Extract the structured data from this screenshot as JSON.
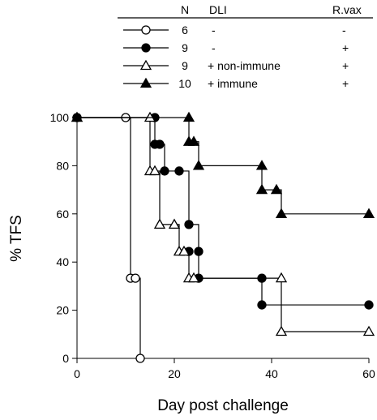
{
  "chart_data": {
    "type": "line",
    "step": true,
    "title": "",
    "xlabel": "Day post challenge",
    "ylabel": "% TFS",
    "xlim": [
      0,
      60
    ],
    "ylim": [
      0,
      100
    ],
    "xticks": [
      0,
      20,
      40,
      60
    ],
    "yticks": [
      0,
      20,
      40,
      60,
      80,
      100
    ],
    "grid": false,
    "legend": {
      "placement": "top-right",
      "headers": [
        "N",
        "DLI",
        "R.vax"
      ],
      "rows": [
        {
          "n": "6",
          "dli": "-",
          "rvax": "-"
        },
        {
          "n": "9",
          "dli": "-",
          "rvax": "+"
        },
        {
          "n": "9",
          "dli": "+ non-immune",
          "rvax": "+"
        },
        {
          "n": "10",
          "dli": "+ immune",
          "rvax": "+"
        }
      ]
    },
    "series": [
      {
        "marker": "open-circle",
        "steps": [
          [
            0,
            100
          ],
          [
            11,
            33.3
          ],
          [
            13,
            0
          ]
        ],
        "points": [
          [
            0,
            100
          ],
          [
            10,
            100
          ],
          [
            11,
            33.3
          ],
          [
            12,
            33.3
          ],
          [
            13,
            0
          ]
        ]
      },
      {
        "marker": "filled-circle",
        "steps": [
          [
            0,
            100
          ],
          [
            16,
            88.9
          ],
          [
            18,
            77.8
          ],
          [
            23,
            55.6
          ],
          [
            25,
            33.3
          ],
          [
            38,
            22.2
          ],
          [
            60,
            22.2
          ]
        ],
        "points": [
          [
            0,
            100
          ],
          [
            16,
            100
          ],
          [
            16,
            88.9
          ],
          [
            17,
            88.9
          ],
          [
            18,
            77.8
          ],
          [
            21,
            77.8
          ],
          [
            23,
            55.6
          ],
          [
            23,
            44.4
          ],
          [
            25,
            44.4
          ],
          [
            25,
            33.3
          ],
          [
            38,
            33.3
          ],
          [
            38,
            22.2
          ],
          [
            60,
            22.2
          ]
        ]
      },
      {
        "marker": "open-triangle",
        "steps": [
          [
            0,
            100
          ],
          [
            15,
            77.8
          ],
          [
            17,
            55.6
          ],
          [
            21,
            44.4
          ],
          [
            23,
            33.3
          ],
          [
            42,
            11.1
          ],
          [
            60,
            11.1
          ]
        ],
        "points": [
          [
            0,
            100
          ],
          [
            15,
            100
          ],
          [
            15,
            77.8
          ],
          [
            16,
            77.8
          ],
          [
            17,
            55.6
          ],
          [
            20,
            55.6
          ],
          [
            21,
            44.4
          ],
          [
            22,
            44.4
          ],
          [
            23,
            33.3
          ],
          [
            24,
            33.3
          ],
          [
            42,
            33.3
          ],
          [
            42,
            11.1
          ],
          [
            60,
            11.1
          ]
        ]
      },
      {
        "marker": "filled-triangle",
        "steps": [
          [
            0,
            100
          ],
          [
            23,
            90
          ],
          [
            25,
            80
          ],
          [
            38,
            70
          ],
          [
            42,
            60
          ],
          [
            60,
            60
          ]
        ],
        "points": [
          [
            0,
            100
          ],
          [
            23,
            100
          ],
          [
            23,
            90
          ],
          [
            24,
            90
          ],
          [
            25,
            80
          ],
          [
            38,
            80
          ],
          [
            38,
            70
          ],
          [
            41,
            70
          ],
          [
            42,
            60
          ],
          [
            60,
            60
          ]
        ]
      }
    ]
  }
}
